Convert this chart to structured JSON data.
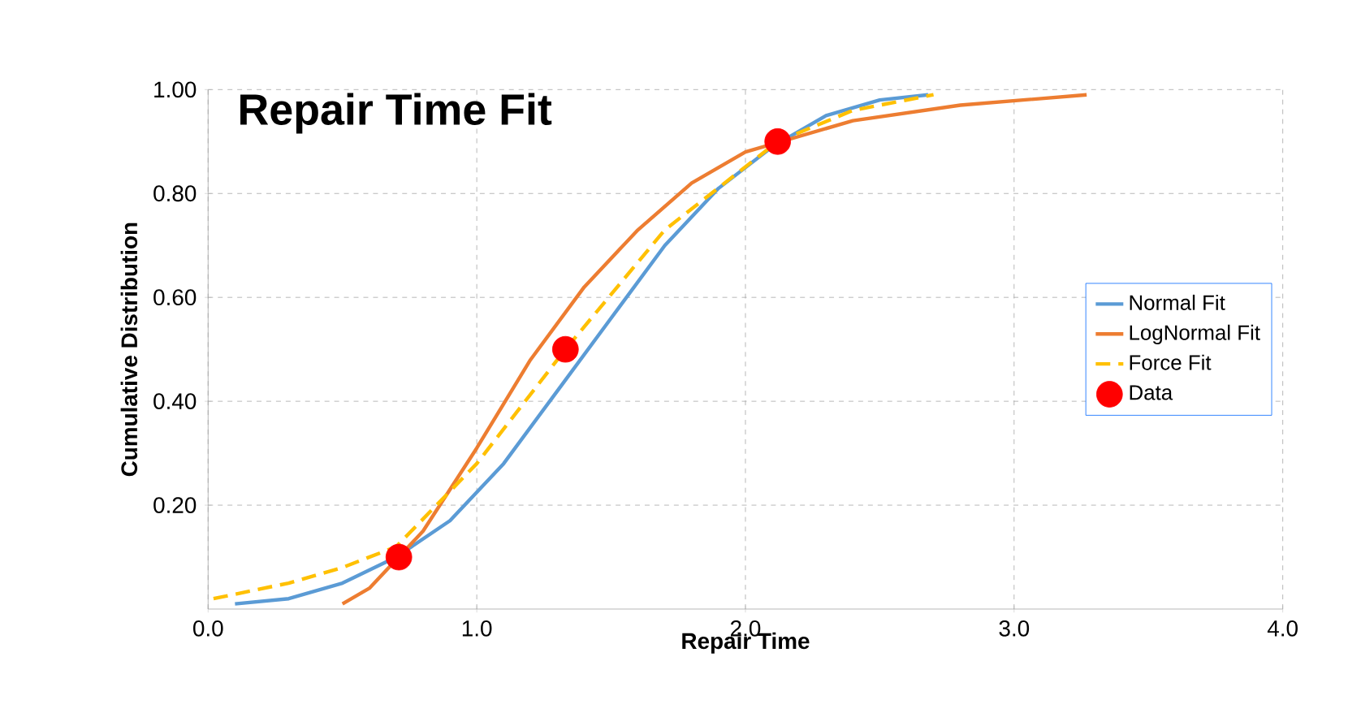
{
  "chart_data": {
    "type": "line",
    "title": "Repair Time Fit",
    "xlabel": "Repair Time",
    "ylabel": "Cumulative Distribution",
    "xlim": [
      0,
      4
    ],
    "xticks": [
      {
        "value": 0,
        "label": "0.0"
      },
      {
        "value": 1,
        "label": "1.0"
      },
      {
        "value": 2,
        "label": "2.0"
      },
      {
        "value": 3,
        "label": "3.0"
      },
      {
        "value": 4,
        "label": "4.0"
      }
    ],
    "ylim": [
      0,
      1
    ],
    "yticks": [
      {
        "value": 0.2,
        "label": "0.20"
      },
      {
        "value": 0.4,
        "label": "0.40"
      },
      {
        "value": 0.6,
        "label": "0.60"
      },
      {
        "value": 0.8,
        "label": "0.80"
      },
      {
        "value": 1,
        "label": "1.00"
      }
    ],
    "grid": true,
    "legend": "right",
    "marker": "none",
    "series": [
      {
        "name": "Normal Fit",
        "color": "#5b9bd5",
        "line_style": "solid",
        "x": [
          0.1,
          0.3,
          0.5,
          0.7,
          0.9,
          1.1,
          1.3,
          1.5,
          1.7,
          1.9,
          2.1,
          2.3,
          2.5,
          2.68
        ],
        "values": [
          0.01,
          0.02,
          0.05,
          0.1,
          0.17,
          0.28,
          0.42,
          0.56,
          0.7,
          0.81,
          0.89,
          0.95,
          0.98,
          0.99
        ]
      },
      {
        "name": "LogNormal Fit",
        "color": "#ed7d31",
        "line_style": "solid",
        "x": [
          0.5,
          0.6,
          0.8,
          1.0,
          1.2,
          1.4,
          1.6,
          1.8,
          2.0,
          2.4,
          2.8,
          3.27
        ],
        "values": [
          0.01,
          0.04,
          0.15,
          0.31,
          0.48,
          0.62,
          0.73,
          0.82,
          0.88,
          0.94,
          0.97,
          0.99
        ]
      },
      {
        "name": "Force Fit",
        "color": "#ffc000",
        "line_style": "dashed",
        "x": [
          0.02,
          0.3,
          0.5,
          0.7,
          1.0,
          1.33,
          1.7,
          2.12,
          2.4,
          2.7
        ],
        "values": [
          0.02,
          0.05,
          0.08,
          0.12,
          0.28,
          0.5,
          0.73,
          0.9,
          0.96,
          0.99
        ]
      },
      {
        "name": "Data",
        "color": "#ff0000",
        "type": "scatter",
        "marker": "circle",
        "x": [
          0.71,
          1.33,
          2.12
        ],
        "values": [
          0.1,
          0.5,
          0.9
        ]
      }
    ]
  }
}
